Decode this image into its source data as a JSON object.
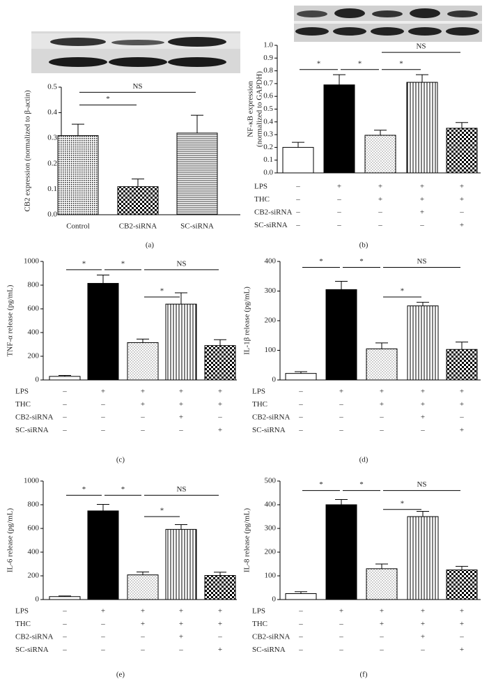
{
  "chart_data": [
    {
      "type": "bar",
      "panel_label": "(a)",
      "ylabel": "CB2 expression (normalized to β-actin)",
      "categories": [
        "Control",
        "CB2-siRNA",
        "SC-siRNA"
      ],
      "values": [
        0.31,
        0.11,
        0.32
      ],
      "errors": [
        0.045,
        0.03,
        0.07
      ],
      "bar_fills": [
        "crosshatch",
        "checker",
        "hstripes"
      ],
      "ylim": [
        0,
        0.5
      ],
      "yticks": [
        {
          "value": 0,
          "label": "0.0"
        },
        0.1,
        0.2,
        0.3,
        0.4,
        0.5
      ],
      "annotations": [
        "*",
        "NS"
      ]
    },
    {
      "type": "bar",
      "panel_label": "(b)",
      "ylabel": [
        "NF-κB expression",
        "(normalized to GAPDH)"
      ],
      "values": [
        0.2,
        0.69,
        0.295,
        0.71,
        0.35
      ],
      "errors": [
        0.04,
        0.08,
        0.04,
        0.06,
        0.045
      ],
      "bar_fills": [
        "white",
        "black",
        "dots",
        "vstripes",
        "checker"
      ],
      "ylim": [
        0,
        1.0
      ],
      "yticks": [
        {
          "value": 0,
          "label": "0.0"
        },
        0.1,
        0.2,
        0.3,
        0.4,
        0.5,
        0.6,
        0.7,
        0.8,
        0.9,
        {
          "value": 1.0,
          "label": "1.0"
        }
      ],
      "treatments": [
        {
          "name": "LPS",
          "signs": [
            "–",
            "+",
            "+",
            "+",
            "+"
          ]
        },
        {
          "name": "THC",
          "signs": [
            "–",
            "–",
            "+",
            "+",
            "+"
          ]
        },
        {
          "name": "CB2-siRNA",
          "signs": [
            "–",
            "–",
            "–",
            "+",
            "–"
          ]
        },
        {
          "name": "SC-siRNA",
          "signs": [
            "–",
            "–",
            "–",
            "–",
            "+"
          ]
        }
      ],
      "annotations": [
        "*",
        "*",
        "*",
        "NS"
      ]
    },
    {
      "type": "bar",
      "panel_label": "(c)",
      "ylabel": "TNF-α release (pg/mL)",
      "values": [
        30,
        815,
        315,
        640,
        290
      ],
      "errors": [
        8,
        70,
        30,
        95,
        50
      ],
      "bar_fills": [
        "white",
        "black",
        "dots",
        "vstripes",
        "checker"
      ],
      "ylim": [
        0,
        1000
      ],
      "yticks": [
        0,
        200,
        400,
        600,
        800,
        1000
      ],
      "treatments": [
        {
          "name": "LPS",
          "signs": [
            "–",
            "+",
            "+",
            "+",
            "+"
          ]
        },
        {
          "name": "THC",
          "signs": [
            "–",
            "–",
            "+",
            "+",
            "+"
          ]
        },
        {
          "name": "CB2-siRNA",
          "signs": [
            "–",
            "–",
            "–",
            "+",
            "–"
          ]
        },
        {
          "name": "SC-siRNA",
          "signs": [
            "–",
            "–",
            "–",
            "–",
            "+"
          ]
        }
      ],
      "annotations": [
        "*",
        "*",
        "NS",
        "*"
      ]
    },
    {
      "type": "bar",
      "panel_label": "(d)",
      "ylabel": "IL-1β release (pg/mL)",
      "values": [
        22,
        305,
        105,
        250,
        103
      ],
      "errors": [
        6,
        28,
        20,
        12,
        25
      ],
      "bar_fills": [
        "white",
        "black",
        "dots",
        "vstripes",
        "checker"
      ],
      "ylim": [
        0,
        400
      ],
      "yticks": [
        0,
        100,
        200,
        300,
        400
      ],
      "treatments": [
        {
          "name": "LPS",
          "signs": [
            "–",
            "+",
            "+",
            "+",
            "+"
          ]
        },
        {
          "name": "THC",
          "signs": [
            "–",
            "–",
            "+",
            "+",
            "+"
          ]
        },
        {
          "name": "CB2-siRNA",
          "signs": [
            "–",
            "–",
            "–",
            "+",
            "–"
          ]
        },
        {
          "name": "SC-siRNA",
          "signs": [
            "–",
            "–",
            "–",
            "–",
            "+"
          ]
        }
      ],
      "annotations": [
        "*",
        "*",
        "NS",
        "*"
      ]
    },
    {
      "type": "bar",
      "panel_label": "(e)",
      "ylabel": "IL-6 release (pg/mL)",
      "values": [
        25,
        748,
        208,
        592,
        203
      ],
      "errors": [
        5,
        55,
        25,
        40,
        28
      ],
      "bar_fills": [
        "white",
        "black",
        "dots",
        "vstripes",
        "checker"
      ],
      "ylim": [
        0,
        1000
      ],
      "yticks": [
        0,
        200,
        400,
        600,
        800,
        1000
      ],
      "treatments": [
        {
          "name": "LPS",
          "signs": [
            "–",
            "+",
            "+",
            "+",
            "+"
          ]
        },
        {
          "name": "THC",
          "signs": [
            "–",
            "–",
            "+",
            "+",
            "+"
          ]
        },
        {
          "name": "CB2-siRNA",
          "signs": [
            "–",
            "–",
            "–",
            "+",
            "–"
          ]
        },
        {
          "name": "SC-siRNA",
          "signs": [
            "–",
            "–",
            "–",
            "–",
            "+"
          ]
        }
      ],
      "annotations": [
        "*",
        "*",
        "NS",
        "*"
      ]
    },
    {
      "type": "bar",
      "panel_label": "(f)",
      "ylabel": "IL-8 release (pg/mL)",
      "values": [
        25,
        400,
        130,
        350,
        125
      ],
      "errors": [
        8,
        22,
        20,
        22,
        15
      ],
      "bar_fills": [
        "white",
        "black",
        "dots",
        "vstripes",
        "checker"
      ],
      "ylim": [
        0,
        500
      ],
      "yticks": [
        0,
        100,
        200,
        300,
        400,
        500
      ],
      "treatments": [
        {
          "name": "LPS",
          "signs": [
            "–",
            "+",
            "+",
            "+",
            "+"
          ]
        },
        {
          "name": "THC",
          "signs": [
            "–",
            "–",
            "+",
            "+",
            "+"
          ]
        },
        {
          "name": "CB2-siRNA",
          "signs": [
            "–",
            "–",
            "–",
            "+",
            "–"
          ]
        },
        {
          "name": "SC-siRNA",
          "signs": [
            "–",
            "–",
            "–",
            "–",
            "+"
          ]
        }
      ],
      "annotations": [
        "*",
        "*",
        "NS",
        "*"
      ]
    }
  ]
}
